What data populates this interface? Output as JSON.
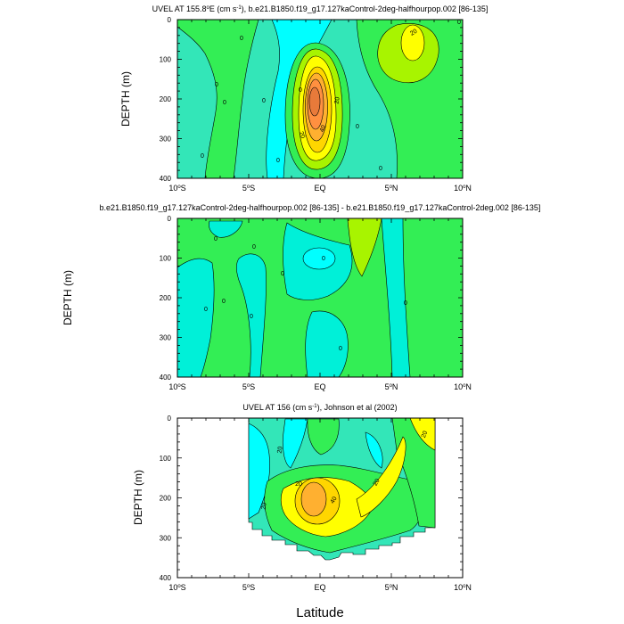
{
  "chart_data": [
    {
      "type": "contour",
      "title_prefix": "UVEL AT 155.8",
      "title_degree": "o",
      "title_mid": "E (cm s",
      "title_exp": "-1",
      "title_suffix": "), b.e21.B1850.f19_g17.127kaControl-2deg-halfhourpop.002 [86-135]",
      "ylabel": "DEPTH (m)",
      "ylim": [
        0,
        400
      ],
      "yticks": [
        "0",
        "100",
        "200",
        "300",
        "400"
      ],
      "xlim": [
        -10,
        10
      ],
      "xticks": [
        "10",
        "5",
        "EQ",
        "5",
        "10"
      ],
      "xtick_hemis": [
        "S",
        "S",
        "",
        "N",
        "N"
      ],
      "contour_labels": [
        "20",
        "0",
        "0",
        "0",
        "0",
        "0",
        "20",
        "40",
        "20",
        "0",
        "0",
        "0",
        "0",
        "0"
      ],
      "features": [
        {
          "name": "equatorial-undercurrent",
          "lat": -0.3,
          "depth": 200,
          "peak_value": 60
        },
        {
          "name": "northern-jet",
          "lat": 3.2,
          "depth": 50,
          "peak_value": 30
        }
      ]
    },
    {
      "type": "contour",
      "title": "b.e21.B1850.f19_g17.127kaControl-2deg-halfhourpop.002 [86-135] - b.e21.B1850.f19_g17.127kaControl-2deg.002 [86-135]",
      "ylabel": "DEPTH (m)",
      "ylim": [
        0,
        400
      ],
      "yticks": [
        "0",
        "100",
        "200",
        "300",
        "400"
      ],
      "xlim": [
        -10,
        10
      ],
      "xticks": [
        "10",
        "5",
        "EQ",
        "5",
        "10"
      ],
      "xtick_hemis": [
        "S",
        "S",
        "",
        "N",
        "N"
      ],
      "contour_labels": [
        "0",
        "0",
        "0",
        "0",
        "0",
        "0",
        "0",
        "0",
        "0"
      ],
      "features": [
        {
          "name": "difference-minimum",
          "lat": 0,
          "depth": 100,
          "peak_value": -10
        }
      ]
    },
    {
      "type": "contour",
      "title_prefix": "UVEL AT 156 (cm s",
      "title_exp": "-1",
      "title_suffix": "), Johnson et al (2002)",
      "ylabel": "DEPTH (m)",
      "ylim": [
        0,
        400
      ],
      "yticks": [
        "0",
        "100",
        "200",
        "300",
        "400"
      ],
      "xlim": [
        -10,
        10
      ],
      "xticks": [
        "10",
        "5",
        "EQ",
        "5",
        "10"
      ],
      "xtick_hemis": [
        "S",
        "S",
        "",
        "N",
        "N"
      ],
      "data_extent_lat": [
        -5,
        8
      ],
      "contour_labels": [
        "20",
        "20",
        "20",
        "40",
        "20",
        "20"
      ],
      "features": [
        {
          "name": "equatorial-undercurrent",
          "lat": -0.5,
          "depth": 200,
          "peak_value": 60
        }
      ]
    }
  ],
  "xlabel": "Latitude",
  "colors": {
    "c_neg2": "#00ffff",
    "c_neg1": "#00f0d8",
    "c_0": "#33e6b8",
    "c_1": "#33ee55",
    "c_2": "#a8f400",
    "c_3": "#ffff00",
    "c_4": "#ffd600",
    "c_5": "#ffb030",
    "c_6": "#ff9040",
    "c_7": "#e87a3a"
  }
}
